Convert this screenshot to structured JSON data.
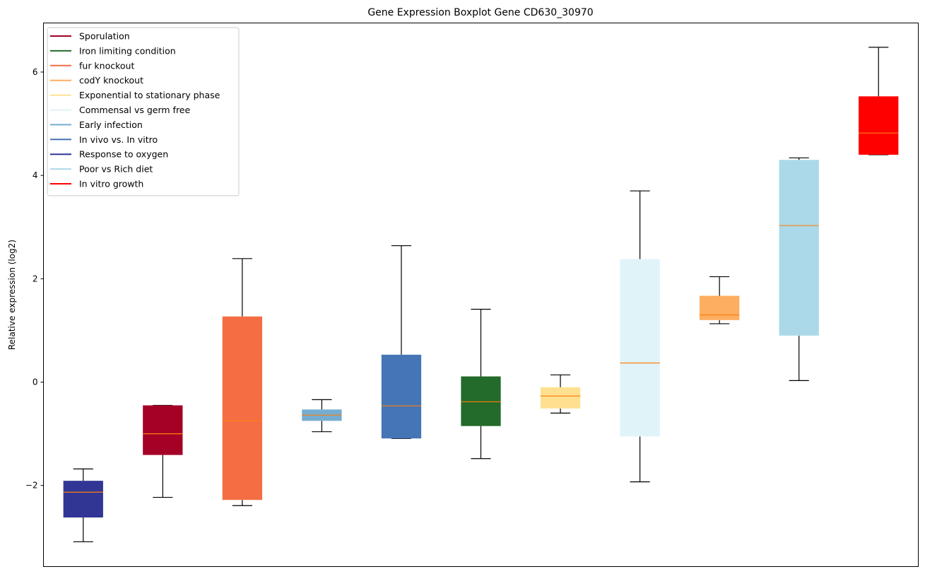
{
  "chart_data": {
    "type": "boxplot",
    "title": "Gene Expression Boxplot Gene CD630_30970",
    "xlabel": "",
    "ylabel": "Relative expression (log2)",
    "ylim": [
      -3.57,
      6.95
    ],
    "yticks": [
      -2,
      0,
      2,
      4,
      6
    ],
    "ytick_labels": [
      "−2",
      "0",
      "2",
      "4",
      "6"
    ],
    "grid": false,
    "legend_position": "top-left",
    "median_color": "#ff7f0e",
    "whisker_color": "#000000",
    "legend": [
      {
        "label": "Sporulation",
        "color": "#a50026"
      },
      {
        "label": "Iron limiting condition",
        "color": "#236b2b"
      },
      {
        "label": "fur knockout",
        "color": "#f46d43"
      },
      {
        "label": "codY knockout",
        "color": "#fdae61"
      },
      {
        "label": "Exponential to stationary phase",
        "color": "#fee090"
      },
      {
        "label": "Commensal vs germ free",
        "color": "#e0f3f8"
      },
      {
        "label": "Early infection",
        "color": "#74add1"
      },
      {
        "label": "In vivo vs. In vitro",
        "color": "#4575b4"
      },
      {
        "label": "Response to oxygen",
        "color": "#313695"
      },
      {
        "label": "Poor vs Rich diet",
        "color": "#abd9e9"
      },
      {
        "label": "In vitro growth",
        "color": "#ff0000"
      }
    ],
    "boxes": [
      {
        "group": "Response to oxygen",
        "color": "#313695",
        "whisker_low": -3.09,
        "q1": -2.62,
        "median": -2.13,
        "q3": -1.91,
        "whisker_high": -1.68
      },
      {
        "group": "Sporulation",
        "color": "#a50026",
        "whisker_low": -2.23,
        "q1": -1.41,
        "median": -1.0,
        "q3": -0.45,
        "whisker_high": -0.45
      },
      {
        "group": "fur knockout",
        "color": "#f46d43",
        "whisker_low": -2.39,
        "q1": -2.28,
        "median": -0.75,
        "q3": 1.27,
        "whisker_high": 2.39
      },
      {
        "group": "Early infection",
        "color": "#74add1",
        "whisker_low": -0.96,
        "q1": -0.75,
        "median": -0.64,
        "q3": -0.53,
        "whisker_high": -0.34
      },
      {
        "group": "In vivo vs. In vitro",
        "color": "#4575b4",
        "whisker_low": -1.09,
        "q1": -1.09,
        "median": -0.46,
        "q3": 0.53,
        "whisker_high": 2.64
      },
      {
        "group": "Iron limiting condition",
        "color": "#236b2b",
        "whisker_low": -1.48,
        "q1": -0.85,
        "median": -0.38,
        "q3": 0.11,
        "whisker_high": 1.41
      },
      {
        "group": "Exponential to stationary phase",
        "color": "#fee090",
        "whisker_low": -0.6,
        "q1": -0.51,
        "median": -0.27,
        "q3": -0.1,
        "whisker_high": 0.14
      },
      {
        "group": "Commensal vs germ free",
        "color": "#e0f3f8",
        "whisker_low": -1.93,
        "q1": -1.05,
        "median": 0.37,
        "q3": 2.38,
        "whisker_high": 3.7
      },
      {
        "group": "codY knockout",
        "color": "#fdae61",
        "whisker_low": 1.13,
        "q1": 1.2,
        "median": 1.3,
        "q3": 1.67,
        "whisker_high": 2.04
      },
      {
        "group": "Poor vs Rich diet",
        "color": "#abd9e9",
        "whisker_low": 0.03,
        "q1": 0.9,
        "median": 3.03,
        "q3": 4.3,
        "whisker_high": 4.34
      },
      {
        "group": "In vitro growth",
        "color": "#ff0000",
        "whisker_low": 4.4,
        "q1": 4.4,
        "median": 4.82,
        "q3": 5.53,
        "whisker_high": 6.48
      }
    ]
  }
}
